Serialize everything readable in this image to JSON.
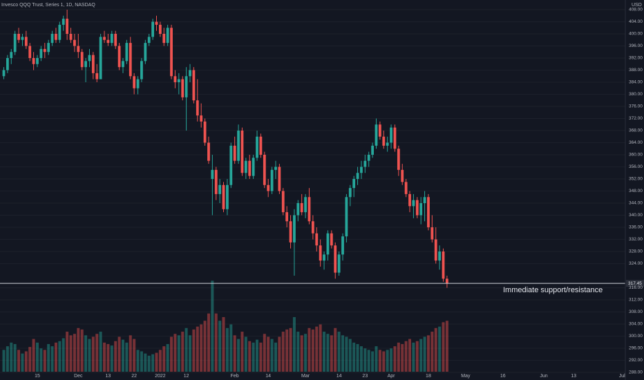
{
  "chart_data": {
    "type": "candlestick",
    "title": "Invesco QQQ Trust, Series 1, 1D, NASDAQ",
    "currency": "USD",
    "up_color": "#26a69a",
    "down_color": "#ef5350",
    "grid": true,
    "ylim": [
      286.4,
      411.2
    ],
    "volume_lim": [
      0,
      130
    ],
    "yticks": [
      {
        "value": 408,
        "label": "408.00"
      },
      {
        "value": 404,
        "label": "404.00"
      },
      {
        "value": 400,
        "label": "400.00"
      },
      {
        "value": 396,
        "label": "396.00"
      },
      {
        "value": 392,
        "label": "392.00"
      },
      {
        "value": 388,
        "label": "388.00"
      },
      {
        "value": 384,
        "label": "384.00"
      },
      {
        "value": 380,
        "label": "380.00"
      },
      {
        "value": 376,
        "label": "376.00"
      },
      {
        "value": 372,
        "label": "372.00"
      },
      {
        "value": 368,
        "label": "368.00"
      },
      {
        "value": 364,
        "label": "364.00"
      },
      {
        "value": 360,
        "label": "360.00"
      },
      {
        "value": 356,
        "label": "356.00"
      },
      {
        "value": 352,
        "label": "352.00"
      },
      {
        "value": 348,
        "label": "348.00"
      },
      {
        "value": 344,
        "label": "344.00"
      },
      {
        "value": 340,
        "label": "340.00"
      },
      {
        "value": 336,
        "label": "336.00"
      },
      {
        "value": 332,
        "label": "332.00"
      },
      {
        "value": 328,
        "label": "328.00"
      },
      {
        "value": 324,
        "label": "324.00"
      },
      {
        "value": 316,
        "label": "316.00"
      },
      {
        "value": 312,
        "label": "312.00"
      },
      {
        "value": 308,
        "label": "308.00"
      },
      {
        "value": 304,
        "label": "304.00"
      },
      {
        "value": 300,
        "label": "300.00"
      },
      {
        "value": 296,
        "label": "296.00"
      },
      {
        "value": 292,
        "label": "292.00"
      },
      {
        "value": 288,
        "label": "288.00"
      }
    ],
    "last_price": 317.45,
    "annotation": {
      "text": "Immediate support/resistance",
      "value": 317.45
    },
    "categories": [
      null,
      null,
      null,
      null,
      null,
      null,
      null,
      null,
      null,
      "15",
      null,
      null,
      null,
      null,
      null,
      null,
      null,
      null,
      null,
      null,
      "Dec",
      null,
      null,
      null,
      null,
      null,
      null,
      null,
      "13",
      null,
      null,
      null,
      null,
      null,
      null,
      "22",
      null,
      null,
      null,
      null,
      null,
      null,
      "2022",
      null,
      null,
      null,
      null,
      null,
      null,
      "12",
      null,
      null,
      null,
      null,
      null,
      null,
      null,
      null,
      null,
      null,
      null,
      null,
      "Feb",
      null,
      null,
      null,
      null,
      null,
      null,
      null,
      null,
      "14",
      null,
      null,
      null,
      null,
      null,
      null,
      null,
      null,
      null,
      "Mar",
      null,
      null,
      null,
      null,
      null,
      null,
      null,
      null,
      "14",
      null,
      null,
      null,
      null,
      null,
      null,
      "23",
      null,
      null,
      null,
      null,
      null,
      null,
      "Apr",
      null,
      null,
      null,
      null,
      null,
      null,
      null,
      null,
      null,
      "18",
      null,
      null,
      null,
      null,
      null,
      null,
      null,
      null,
      null,
      "May",
      null,
      null,
      null,
      null,
      null,
      null,
      null,
      null,
      null,
      "16",
      null,
      null,
      null,
      null,
      null,
      null,
      null,
      null,
      null,
      null,
      "Jun",
      null,
      null,
      null,
      null,
      null,
      null,
      null,
      "13",
      null,
      null,
      null,
      null,
      null,
      null,
      null,
      null,
      null,
      null,
      null,
      null,
      "Jul"
    ],
    "open": [
      386,
      388,
      392,
      394,
      400,
      398,
      399,
      396,
      392,
      390,
      392,
      395,
      394,
      397,
      400,
      398,
      403,
      405,
      400,
      398,
      396,
      394,
      389,
      391,
      393,
      387,
      385,
      399,
      398,
      397,
      400,
      396,
      389,
      391,
      397,
      386,
      382,
      385,
      391,
      397,
      399,
      404,
      403,
      400,
      397,
      402,
      386,
      384,
      385,
      379,
      386,
      388,
      378,
      373,
      371,
      364,
      352,
      355,
      347,
      350,
      342,
      350,
      363,
      358,
      368,
      354,
      358,
      353,
      359,
      366,
      360,
      350,
      348,
      355,
      356,
      348,
      341,
      338,
      331,
      340,
      344,
      341,
      346,
      338,
      334,
      330,
      325,
      327,
      334,
      330,
      321,
      327,
      333,
      346,
      349,
      352,
      354,
      356,
      358,
      360,
      363,
      370,
      366,
      363,
      364,
      369,
      362,
      355,
      351,
      347,
      343,
      345,
      340,
      344,
      346,
      336,
      332,
      325,
      328,
      319,
      null,
      null,
      null,
      null,
      null,
      null,
      null,
      null,
      null,
      null,
      null,
      null,
      null,
      null,
      null,
      null,
      null,
      null,
      null,
      null,
      null,
      null,
      null,
      null,
      null,
      null,
      null,
      null,
      null,
      null,
      null,
      null,
      null,
      null,
      null,
      null,
      null,
      null,
      null,
      null,
      null,
      null,
      null,
      null,
      null,
      null,
      null
    ],
    "high": [
      389,
      393,
      395,
      401,
      402,
      400,
      401,
      397,
      394,
      393,
      396,
      397,
      398,
      401,
      402,
      404,
      406,
      408,
      402,
      400,
      400,
      395,
      392,
      395,
      394,
      390,
      400,
      401,
      400,
      401,
      401,
      397,
      392,
      398,
      399,
      387,
      386,
      392,
      398,
      400,
      405,
      406,
      404,
      402,
      403,
      403,
      388,
      387,
      386,
      389,
      390,
      389,
      385,
      377,
      372,
      366,
      360,
      356,
      352,
      351,
      352,
      364,
      366,
      370,
      369,
      359,
      360,
      360,
      368,
      367,
      361,
      352,
      356,
      358,
      357,
      349,
      343,
      340,
      342,
      345,
      347,
      347,
      349,
      340,
      336,
      332,
      328,
      335,
      335,
      331,
      328,
      334,
      347,
      350,
      353,
      356,
      358,
      360,
      361,
      364,
      372,
      371,
      368,
      366,
      370,
      370,
      363,
      357,
      352,
      348,
      347,
      346,
      346,
      348,
      347,
      340,
      336,
      330,
      329,
      320,
      null,
      null,
      null,
      null,
      null,
      null,
      null,
      null,
      null,
      null,
      null,
      null,
      null,
      null,
      null,
      null,
      null,
      null,
      null,
      null,
      null,
      null,
      null,
      null,
      null,
      null,
      null,
      null,
      null,
      null,
      null,
      null,
      null,
      null,
      null,
      null,
      null,
      null,
      null,
      null,
      null,
      null,
      null,
      null,
      null,
      null,
      null
    ],
    "low": [
      385,
      387,
      390,
      393,
      397,
      396,
      395,
      391,
      388,
      389,
      391,
      392,
      393,
      396,
      397,
      397,
      401,
      398,
      397,
      394,
      392,
      388,
      384,
      389,
      385,
      384,
      385,
      397,
      396,
      396,
      395,
      388,
      387,
      390,
      385,
      380,
      380,
      384,
      390,
      396,
      398,
      401,
      399,
      396,
      396,
      385,
      382,
      380,
      378,
      368,
      384,
      377,
      371,
      369,
      363,
      357,
      340,
      345,
      344,
      341,
      340,
      349,
      357,
      357,
      353,
      352,
      352,
      352,
      358,
      359,
      349,
      346,
      347,
      352,
      347,
      340,
      336,
      329,
      320,
      338,
      340,
      339,
      337,
      332,
      328,
      323,
      322,
      325,
      329,
      319,
      320,
      325,
      331,
      343,
      346,
      350,
      352,
      354,
      356,
      359,
      362,
      365,
      362,
      361,
      362,
      361,
      353,
      350,
      346,
      341,
      339,
      339,
      337,
      338,
      335,
      331,
      324,
      322,
      318,
      316,
      null,
      null,
      null,
      null,
      null,
      null,
      null,
      null,
      null,
      null,
      null,
      null,
      null,
      null,
      null,
      null,
      null,
      null,
      null,
      null,
      null,
      null,
      null,
      null,
      null,
      null,
      null,
      null,
      null,
      null,
      null,
      null,
      null,
      null,
      null,
      null,
      null,
      null,
      null,
      null,
      null,
      null,
      null,
      null,
      null,
      null,
      null
    ],
    "close": [
      388,
      392,
      394,
      400,
      398,
      399,
      396,
      392,
      390,
      392,
      395,
      394,
      397,
      400,
      398,
      403,
      405,
      400,
      398,
      396,
      394,
      389,
      391,
      393,
      387,
      385,
      399,
      398,
      397,
      400,
      396,
      389,
      391,
      397,
      386,
      382,
      385,
      391,
      397,
      399,
      404,
      403,
      400,
      397,
      402,
      386,
      384,
      385,
      379,
      386,
      388,
      378,
      373,
      371,
      364,
      358,
      355,
      347,
      350,
      342,
      350,
      363,
      358,
      368,
      354,
      358,
      353,
      359,
      366,
      360,
      350,
      348,
      355,
      356,
      348,
      341,
      338,
      331,
      340,
      344,
      341,
      346,
      338,
      334,
      330,
      325,
      327,
      334,
      330,
      321,
      327,
      333,
      346,
      349,
      352,
      354,
      356,
      358,
      360,
      363,
      370,
      366,
      363,
      364,
      369,
      362,
      355,
      351,
      347,
      343,
      345,
      340,
      344,
      346,
      336,
      332,
      325,
      328,
      319,
      317.45,
      null,
      null,
      null,
      null,
      null,
      null,
      null,
      null,
      null,
      null,
      null,
      null,
      null,
      null,
      null,
      null,
      null,
      null,
      null,
      null,
      null,
      null,
      null,
      null,
      null,
      null,
      null,
      null,
      null,
      null,
      null,
      null,
      null,
      null,
      null,
      null,
      null,
      null,
      null,
      null,
      null,
      null,
      null,
      null,
      null,
      null,
      null
    ],
    "volume": [
      30,
      35,
      40,
      38,
      30,
      25,
      28,
      34,
      45,
      40,
      32,
      30,
      38,
      35,
      40,
      42,
      46,
      55,
      50,
      52,
      60,
      58,
      50,
      45,
      48,
      52,
      55,
      40,
      38,
      36,
      42,
      48,
      44,
      40,
      50,
      45,
      30,
      28,
      25,
      22,
      24,
      26,
      30,
      35,
      38,
      48,
      52,
      50,
      55,
      60,
      50,
      58,
      62,
      65,
      70,
      80,
      125,
      80,
      70,
      75,
      60,
      65,
      50,
      45,
      55,
      48,
      42,
      40,
      44,
      40,
      52,
      48,
      45,
      40,
      48,
      55,
      58,
      60,
      75,
      55,
      50,
      52,
      60,
      58,
      62,
      65,
      55,
      52,
      50,
      60,
      55,
      50,
      48,
      45,
      40,
      38,
      35,
      32,
      30,
      28,
      35,
      30,
      28,
      30,
      32,
      35,
      40,
      38,
      42,
      45,
      40,
      42,
      45,
      48,
      50,
      55,
      60,
      62,
      68,
      70,
      null,
      null,
      null,
      null,
      null,
      null,
      null,
      null,
      null,
      null,
      null,
      null,
      null,
      null,
      null,
      null,
      null,
      null,
      null,
      null,
      null,
      null,
      null,
      null,
      null,
      null,
      null,
      null,
      null,
      null,
      null,
      null,
      null,
      null,
      null,
      null,
      null,
      null,
      null,
      null,
      null,
      null,
      null,
      null,
      null,
      null,
      null
    ]
  }
}
